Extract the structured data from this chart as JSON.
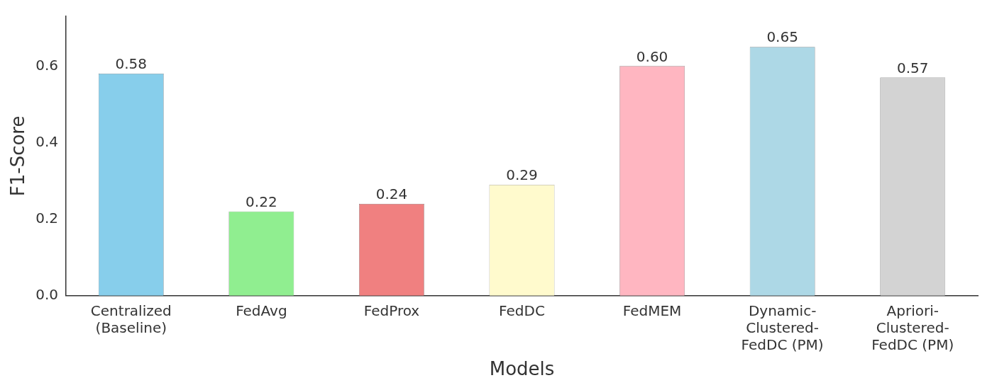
{
  "chart_data": {
    "type": "bar",
    "xlabel": "Models",
    "ylabel": "F1-Score",
    "categories": [
      "Centralized\n(Baseline)",
      "FedAvg",
      "FedProx",
      "FedDC",
      "FedMEM",
      "Dynamic-\nClustered-\nFedDC (PM)",
      "Apriori-\nClustered-\nFedDC (PM)"
    ],
    "values": [
      0.58,
      0.22,
      0.24,
      0.29,
      0.6,
      0.65,
      0.57
    ],
    "value_labels": [
      "0.58",
      "0.22",
      "0.24",
      "0.29",
      "0.60",
      "0.65",
      "0.57"
    ],
    "colors": [
      "#87ceeb",
      "#90ee90",
      "#f08080",
      "#fffacd",
      "#ffb6c1",
      "#add8e6",
      "#d3d3d3"
    ],
    "ylim": [
      0,
      0.73
    ],
    "yticks": [
      {
        "value": 0,
        "label": "0.0"
      },
      {
        "value": 0.2,
        "label": "0.2"
      },
      {
        "value": 0.4,
        "label": "0.4"
      },
      {
        "value": 0.6,
        "label": "0.6"
      }
    ],
    "grid": false,
    "legend": false
  }
}
